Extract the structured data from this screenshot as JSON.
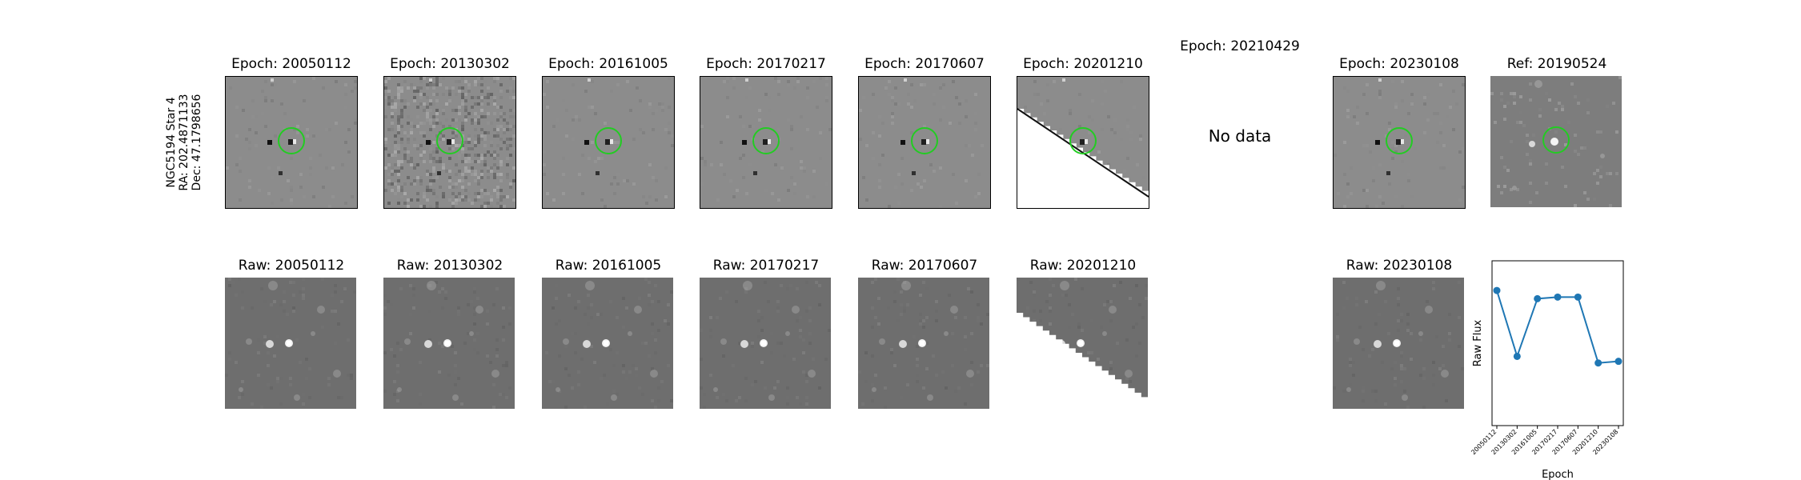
{
  "star_label": {
    "name": "NGC5194 Star 4",
    "ra": "RA: 202.4871133",
    "dec": "Dec: 47.1798656"
  },
  "top_row": [
    {
      "title": "Epoch: 20050112",
      "kind": "diff",
      "marker": "circle"
    },
    {
      "title": "Epoch: 20130302",
      "kind": "diff-noisy",
      "marker": "circle"
    },
    {
      "title": "Epoch: 20161005",
      "kind": "diff",
      "marker": "circle"
    },
    {
      "title": "Epoch: 20170217",
      "kind": "diff",
      "marker": "circle"
    },
    {
      "title": "Epoch: 20170607",
      "kind": "diff",
      "marker": "circle"
    },
    {
      "title": "Epoch: 20201210",
      "kind": "diff-edge",
      "marker": "circle"
    },
    {
      "title": "Epoch: 20210429",
      "kind": "none",
      "marker": "none"
    },
    {
      "title": "Epoch: 20230108",
      "kind": "diff",
      "marker": "circle"
    },
    {
      "title": "Ref: 20190524",
      "kind": "ref",
      "marker": "circle"
    }
  ],
  "no_data_text": "No data",
  "bottom_row": [
    {
      "title": "Raw: 20050112",
      "kind": "raw"
    },
    {
      "title": "Raw: 20130302",
      "kind": "raw"
    },
    {
      "title": "Raw: 20161005",
      "kind": "raw"
    },
    {
      "title": "Raw: 20170217",
      "kind": "raw"
    },
    {
      "title": "Raw: 20170607",
      "kind": "raw"
    },
    {
      "title": "Raw: 20201210",
      "kind": "raw-edge"
    },
    {
      "title": "Raw: 20230108",
      "kind": "raw"
    }
  ],
  "colors": {
    "marker": "#22cc22",
    "series": "#1f77b4"
  },
  "chart_data": {
    "type": "line",
    "title": "",
    "xlabel": "Epoch",
    "ylabel": "Raw Flux",
    "x": [
      "20050112",
      "20130302",
      "20161005",
      "20170217",
      "20170607",
      "20201210",
      "20230108"
    ],
    "series": [
      {
        "values": [
          0.82,
          0.42,
          0.77,
          0.78,
          0.78,
          0.38,
          0.39
        ]
      }
    ],
    "ylim": [
      0,
      1
    ],
    "grid": false
  }
}
